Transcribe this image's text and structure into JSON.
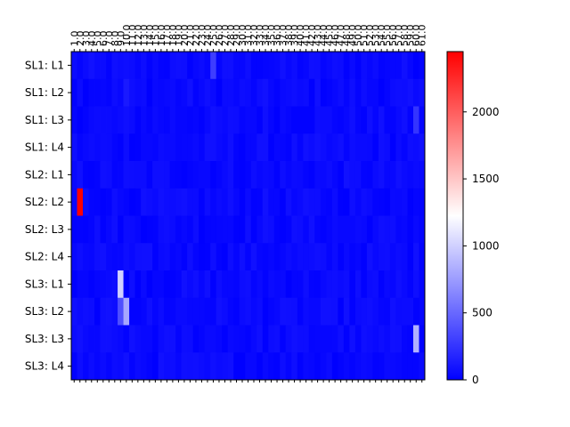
{
  "chart_data": {
    "type": "heatmap",
    "title": "",
    "xlabel": "",
    "ylabel": "",
    "rows": [
      "SL1: L1",
      "SL1: L2",
      "SL1: L3",
      "SL1: L4",
      "SL2: L1",
      "SL2: L2",
      "SL2: L3",
      "SL2: L4",
      "SL3: L1",
      "SL3: L2",
      "SL3: L3",
      "SL3: L4"
    ],
    "columns": [
      "1.0",
      "2.0",
      "3.0",
      "4.0",
      "5.0",
      "6.0",
      "7.0",
      "8.0",
      "9.0",
      "10.0",
      "11.0",
      "12.0",
      "13.0",
      "14.0",
      "15.0",
      "16.0",
      "17.0",
      "18.0",
      "19.0",
      "20.0",
      "21.0",
      "22.0",
      "23.0",
      "24.0",
      "25.0",
      "26.0",
      "27.0",
      "28.0",
      "29.0",
      "30.0",
      "31.0",
      "32.0",
      "33.0",
      "34.0",
      "35.0",
      "36.0",
      "37.0",
      "38.0",
      "39.0",
      "40.0",
      "41.0",
      "42.0",
      "43.0",
      "44.0",
      "45.0",
      "46.0",
      "47.0",
      "48.0",
      "49.0",
      "50.0",
      "51.0",
      "52.0",
      "53.0",
      "54.0",
      "55.0",
      "56.0",
      "57.0",
      "58.0",
      "59.0",
      "60.0",
      "61.0"
    ],
    "highlights": [
      {
        "row": 5,
        "col": 1,
        "value": 2450
      },
      {
        "row": 8,
        "col": 8,
        "value": 1000
      },
      {
        "row": 9,
        "col": 8,
        "value": 380
      },
      {
        "row": 9,
        "col": 9,
        "value": 800
      },
      {
        "row": 10,
        "col": 59,
        "value": 850
      },
      {
        "row": 0,
        "col": 24,
        "value": 300
      },
      {
        "row": 2,
        "col": 59,
        "value": 250
      },
      {
        "row": 1,
        "col": 9,
        "value": 120
      }
    ],
    "background_range": [
      0,
      80
    ],
    "colorbar": {
      "colormap": "bwr",
      "vmin": 0,
      "vmax": 2450,
      "ticks": [
        0,
        500,
        1000,
        1500,
        2000
      ]
    }
  }
}
